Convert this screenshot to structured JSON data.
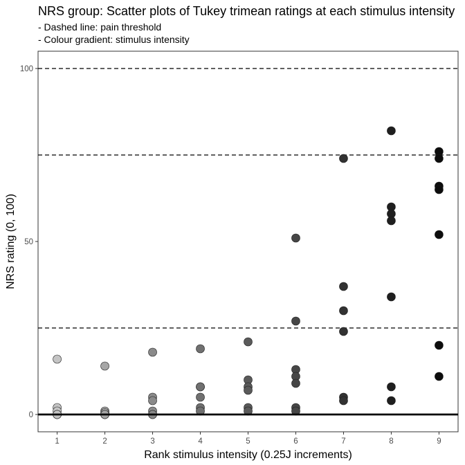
{
  "chart_data": {
    "type": "scatter",
    "title": "NRS group: Scatter plots of Tukey trimean ratings at each stimulus intensity",
    "subtitle_lines": [
      "- Dashed line: pain threshold",
      "- Colour gradient: stimulus intensity"
    ],
    "xlabel": "Rank stimulus intensity (0.25J increments)",
    "ylabel": "NRS rating (0, 100)",
    "x_ticks": [
      1,
      2,
      3,
      4,
      5,
      6,
      7,
      8,
      9
    ],
    "y_ticks": [
      0,
      50,
      100
    ],
    "xlim": [
      0.6,
      9.4
    ],
    "ylim": [
      -5,
      105
    ],
    "grid": false,
    "dashed_lines_y": [
      25,
      75,
      100
    ],
    "solid_line_y": 0,
    "point_colors": [
      "#c4c4c4",
      "#a6a6a6",
      "#8a8a8a",
      "#707070",
      "#5a5a5a",
      "#464646",
      "#323232",
      "#1f1f1f",
      "#0d0d0d"
    ],
    "points": [
      {
        "x": 1,
        "y": 16
      },
      {
        "x": 1,
        "y": 2
      },
      {
        "x": 1,
        "y": 1
      },
      {
        "x": 1,
        "y": 0
      },
      {
        "x": 1,
        "y": 0
      },
      {
        "x": 1,
        "y": 0
      },
      {
        "x": 2,
        "y": 14
      },
      {
        "x": 2,
        "y": 1
      },
      {
        "x": 2,
        "y": 0.5
      },
      {
        "x": 2,
        "y": 0
      },
      {
        "x": 2,
        "y": 0
      },
      {
        "x": 2,
        "y": 0
      },
      {
        "x": 3,
        "y": 18
      },
      {
        "x": 3,
        "y": 5
      },
      {
        "x": 3,
        "y": 4
      },
      {
        "x": 3,
        "y": 1
      },
      {
        "x": 3,
        "y": 0
      },
      {
        "x": 3,
        "y": 0
      },
      {
        "x": 4,
        "y": 19
      },
      {
        "x": 4,
        "y": 8
      },
      {
        "x": 4,
        "y": 8
      },
      {
        "x": 4,
        "y": 5
      },
      {
        "x": 4,
        "y": 2
      },
      {
        "x": 4,
        "y": 1
      },
      {
        "x": 5,
        "y": 21
      },
      {
        "x": 5,
        "y": 10
      },
      {
        "x": 5,
        "y": 8
      },
      {
        "x": 5,
        "y": 7
      },
      {
        "x": 5,
        "y": 2
      },
      {
        "x": 5,
        "y": 1
      },
      {
        "x": 6,
        "y": 51
      },
      {
        "x": 6,
        "y": 27
      },
      {
        "x": 6,
        "y": 13
      },
      {
        "x": 6,
        "y": 11
      },
      {
        "x": 6,
        "y": 9
      },
      {
        "x": 6,
        "y": 2
      },
      {
        "x": 6,
        "y": 1
      },
      {
        "x": 7,
        "y": 74
      },
      {
        "x": 7,
        "y": 37
      },
      {
        "x": 7,
        "y": 30
      },
      {
        "x": 7,
        "y": 24
      },
      {
        "x": 7,
        "y": 5
      },
      {
        "x": 7,
        "y": 4
      },
      {
        "x": 8,
        "y": 82
      },
      {
        "x": 8,
        "y": 60
      },
      {
        "x": 8,
        "y": 58
      },
      {
        "x": 8,
        "y": 56
      },
      {
        "x": 8,
        "y": 34
      },
      {
        "x": 8,
        "y": 8
      },
      {
        "x": 8,
        "y": 4
      },
      {
        "x": 9,
        "y": 76
      },
      {
        "x": 9,
        "y": 74
      },
      {
        "x": 9,
        "y": 66
      },
      {
        "x": 9,
        "y": 65
      },
      {
        "x": 9,
        "y": 52
      },
      {
        "x": 9,
        "y": 20
      },
      {
        "x": 9,
        "y": 11
      }
    ]
  }
}
